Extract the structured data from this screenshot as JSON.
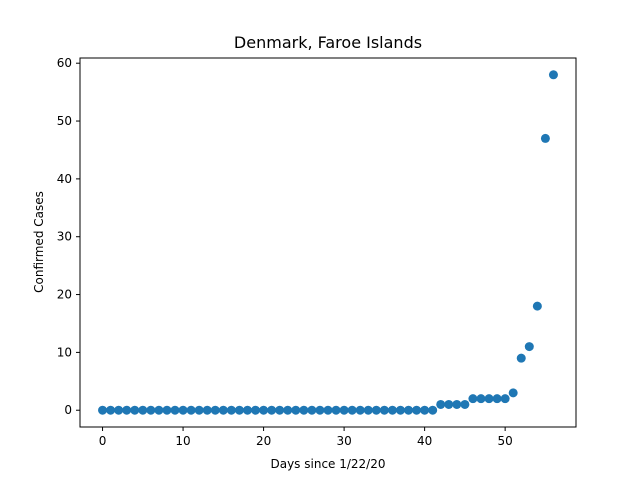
{
  "chart_data": {
    "type": "scatter",
    "title": "Denmark, Faroe Islands",
    "xlabel": "Days since 1/22/20",
    "ylabel": "Confirmed Cases",
    "xlim": [
      -2.8,
      58.8
    ],
    "ylim": [
      -2.9,
      60.9
    ],
    "xticks": [
      0,
      10,
      20,
      30,
      40,
      50
    ],
    "yticks": [
      0,
      10,
      20,
      30,
      40,
      50,
      60
    ],
    "grid": false,
    "color": "#1f77b4",
    "x": [
      0,
      1,
      2,
      3,
      4,
      5,
      6,
      7,
      8,
      9,
      10,
      11,
      12,
      13,
      14,
      15,
      16,
      17,
      18,
      19,
      20,
      21,
      22,
      23,
      24,
      25,
      26,
      27,
      28,
      29,
      30,
      31,
      32,
      33,
      34,
      35,
      36,
      37,
      38,
      39,
      40,
      41,
      42,
      43,
      44,
      45,
      46,
      47,
      48,
      49,
      50,
      51,
      52,
      53,
      54,
      55,
      56
    ],
    "y": [
      0,
      0,
      0,
      0,
      0,
      0,
      0,
      0,
      0,
      0,
      0,
      0,
      0,
      0,
      0,
      0,
      0,
      0,
      0,
      0,
      0,
      0,
      0,
      0,
      0,
      0,
      0,
      0,
      0,
      0,
      0,
      0,
      0,
      0,
      0,
      0,
      0,
      0,
      0,
      0,
      0,
      0,
      1,
      1,
      1,
      1,
      2,
      2,
      2,
      2,
      2,
      3,
      9,
      11,
      18,
      47,
      58
    ]
  }
}
